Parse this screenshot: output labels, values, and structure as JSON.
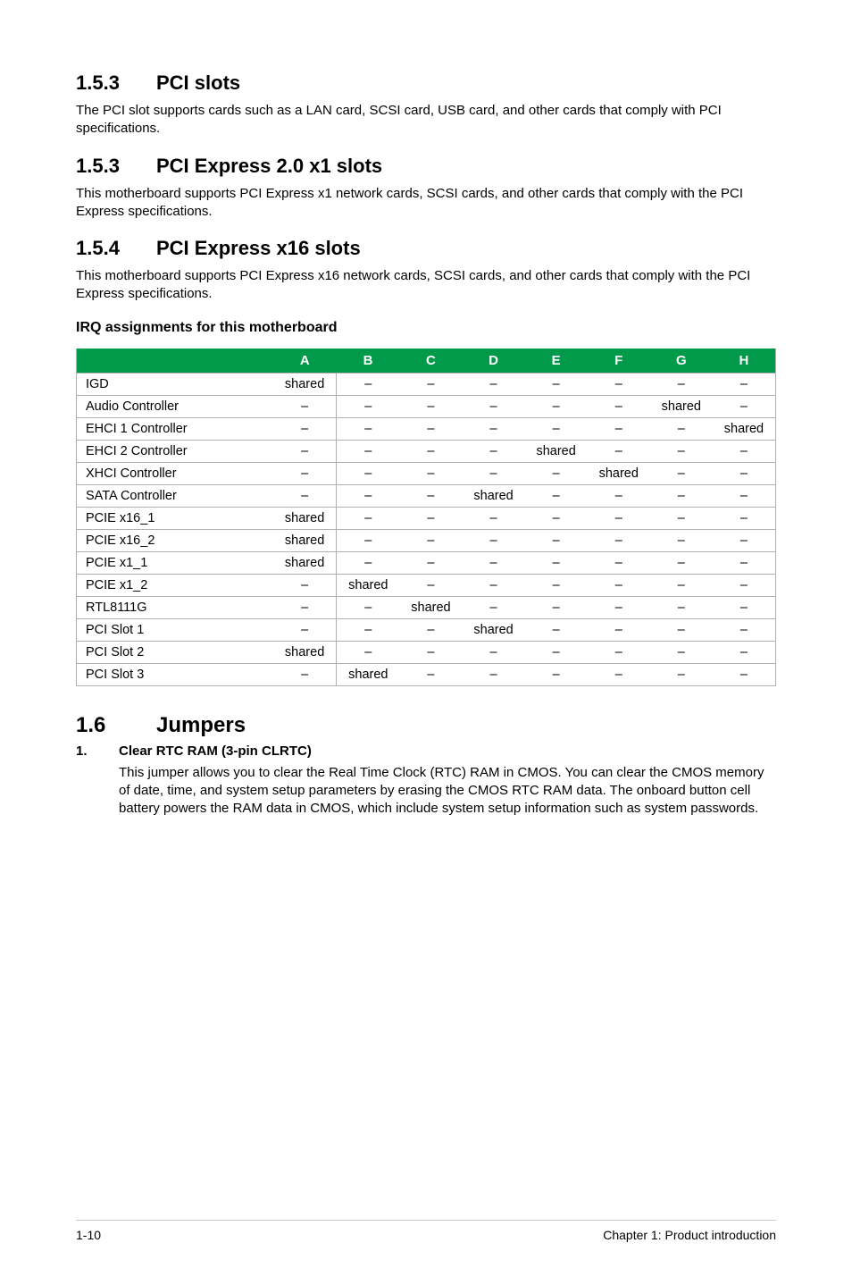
{
  "sections": {
    "s1": {
      "num": "1.5.3",
      "title": "PCI slots",
      "body": "The PCI slot supports cards such as a LAN card, SCSI card, USB card, and other cards that comply with PCI specifications."
    },
    "s2": {
      "num": "1.5.3",
      "title": "PCI Express 2.0 x1 slots",
      "body": "This motherboard supports PCI Express x1 network cards, SCSI cards, and other cards that comply with the PCI Express specifications."
    },
    "s3": {
      "num": "1.5.4",
      "title": "PCI Express x16 slots",
      "body": "This motherboard supports PCI Express x16 network cards, SCSI cards, and other cards that comply with the PCI Express specifications."
    },
    "irq_heading": "IRQ assignments for this motherboard",
    "jumpers": {
      "num": "1.6",
      "title": "Jumpers"
    },
    "j1": {
      "num": "1.",
      "title": "Clear RTC RAM (3-pin CLRTC)",
      "body": "This jumper allows you to clear the Real Time Clock (RTC) RAM in CMOS. You can clear the CMOS memory of date, time, and system setup parameters by erasing the CMOS RTC RAM data. The onboard button cell battery powers the RAM data in CMOS, which include system setup information such as system passwords."
    }
  },
  "table": {
    "header_bg": "#009a4a",
    "header_fg": "#ffffff",
    "border": "#b0b0b0",
    "columns": [
      "",
      "A",
      "B",
      "C",
      "D",
      "E",
      "F",
      "G",
      "H"
    ],
    "rows": [
      [
        "IGD",
        "shared",
        "–",
        "–",
        "–",
        "–",
        "–",
        "–",
        "–"
      ],
      [
        "Audio Controller",
        "–",
        "–",
        "–",
        "–",
        "–",
        "–",
        "shared",
        "–"
      ],
      [
        "EHCI 1 Controller",
        "–",
        "–",
        "–",
        "–",
        "–",
        "–",
        "–",
        "shared"
      ],
      [
        "EHCI 2 Controller",
        "–",
        "–",
        "–",
        "–",
        "shared",
        "–",
        "–",
        "–"
      ],
      [
        "XHCI Controller",
        "–",
        "–",
        "–",
        "–",
        "–",
        "shared",
        "–",
        "–"
      ],
      [
        "SATA Controller",
        "–",
        "–",
        "–",
        "shared",
        "–",
        "–",
        "–",
        "–"
      ],
      [
        "PCIE x16_1",
        "shared",
        "–",
        "–",
        "–",
        "–",
        "–",
        "–",
        "–"
      ],
      [
        "PCIE x16_2",
        "shared",
        "–",
        "–",
        "–",
        "–",
        "–",
        "–",
        "–"
      ],
      [
        "PCIE x1_1",
        "shared",
        "–",
        "–",
        "–",
        "–",
        "–",
        "–",
        "–"
      ],
      [
        "PCIE x1_2",
        "–",
        "shared",
        "–",
        "–",
        "–",
        "–",
        "–",
        "–"
      ],
      [
        "RTL8111G",
        "–",
        "–",
        "shared",
        "–",
        "–",
        "–",
        "–",
        "–"
      ],
      [
        "PCI Slot 1",
        "–",
        "–",
        "–",
        "shared",
        "–",
        "–",
        "–",
        "–"
      ],
      [
        "PCI Slot 2",
        "shared",
        "–",
        "–",
        "–",
        "–",
        "–",
        "–",
        "–"
      ],
      [
        "PCI Slot 3",
        "–",
        "shared",
        "–",
        "–",
        "–",
        "–",
        "–",
        "–"
      ]
    ]
  },
  "footer": {
    "left": "1-10",
    "right": "Chapter 1: Product introduction"
  }
}
